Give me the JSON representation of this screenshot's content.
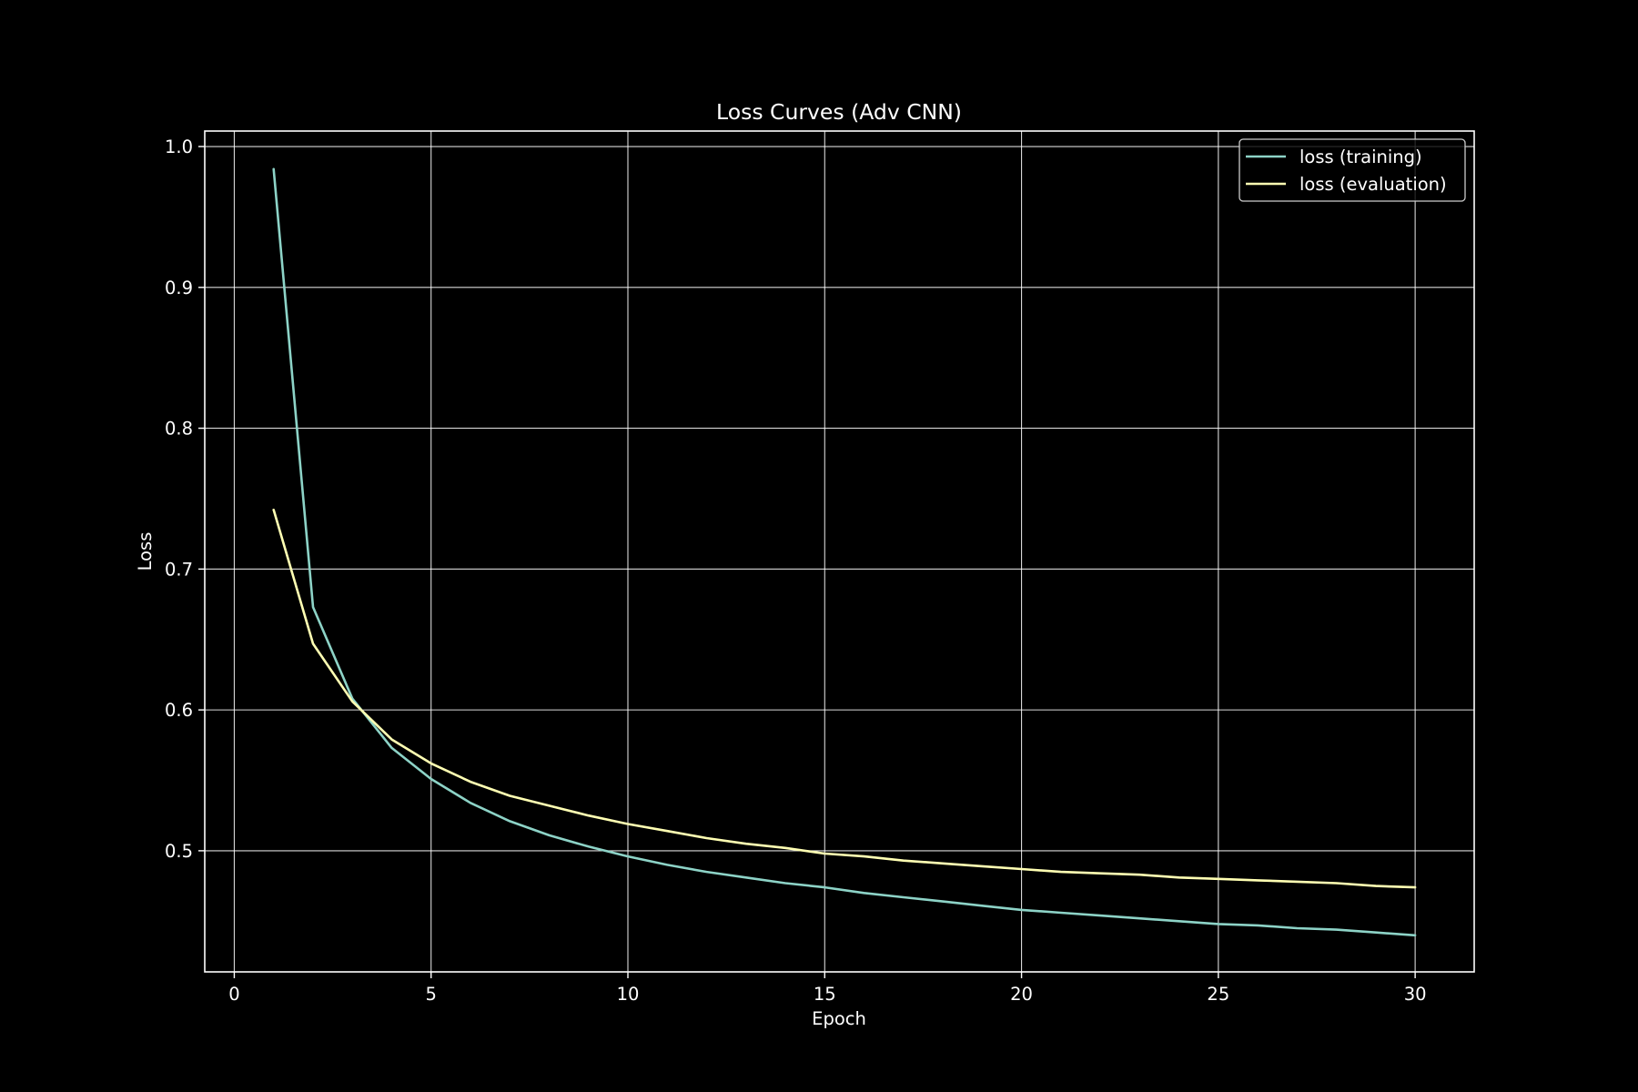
{
  "chart_data": {
    "type": "line",
    "title": "Loss Curves (Adv CNN)",
    "xlabel": "Epoch",
    "ylabel": "Loss",
    "xlim": [
      -0.75,
      31.5
    ],
    "ylim": [
      0.414,
      1.011
    ],
    "xticks": [
      0,
      5,
      10,
      15,
      20,
      25,
      30
    ],
    "xtick_labels": [
      "0",
      "5",
      "10",
      "15",
      "20",
      "25",
      "30"
    ],
    "yticks": [
      0.5,
      0.6,
      0.7,
      0.8,
      0.9,
      1.0
    ],
    "ytick_labels": [
      "0.5",
      "0.6",
      "0.7",
      "0.8",
      "0.9",
      "1.0"
    ],
    "grid": true,
    "legend_position": "top-right",
    "background": "#000000",
    "x": [
      1,
      2,
      3,
      4,
      5,
      6,
      7,
      8,
      9,
      10,
      11,
      12,
      13,
      14,
      15,
      16,
      17,
      18,
      19,
      20,
      21,
      22,
      23,
      24,
      25,
      26,
      27,
      28,
      29,
      30
    ],
    "series": [
      {
        "name": "loss (training)",
        "color": "#8dd3c7",
        "values": [
          0.984,
          0.673,
          0.608,
          0.573,
          0.551,
          0.534,
          0.521,
          0.511,
          0.503,
          0.496,
          0.49,
          0.485,
          0.481,
          0.477,
          0.474,
          0.47,
          0.467,
          0.464,
          0.461,
          0.458,
          0.456,
          0.454,
          0.452,
          0.45,
          0.448,
          0.447,
          0.445,
          0.444,
          0.442,
          0.44
        ]
      },
      {
        "name": "loss (evaluation)",
        "color": "#ffffb3",
        "values": [
          0.742,
          0.647,
          0.606,
          0.579,
          0.562,
          0.549,
          0.539,
          0.532,
          0.525,
          0.519,
          0.514,
          0.509,
          0.505,
          0.502,
          0.498,
          0.496,
          0.493,
          0.491,
          0.489,
          0.487,
          0.485,
          0.484,
          0.483,
          0.481,
          0.48,
          0.479,
          0.478,
          0.477,
          0.475,
          0.474
        ]
      }
    ]
  }
}
